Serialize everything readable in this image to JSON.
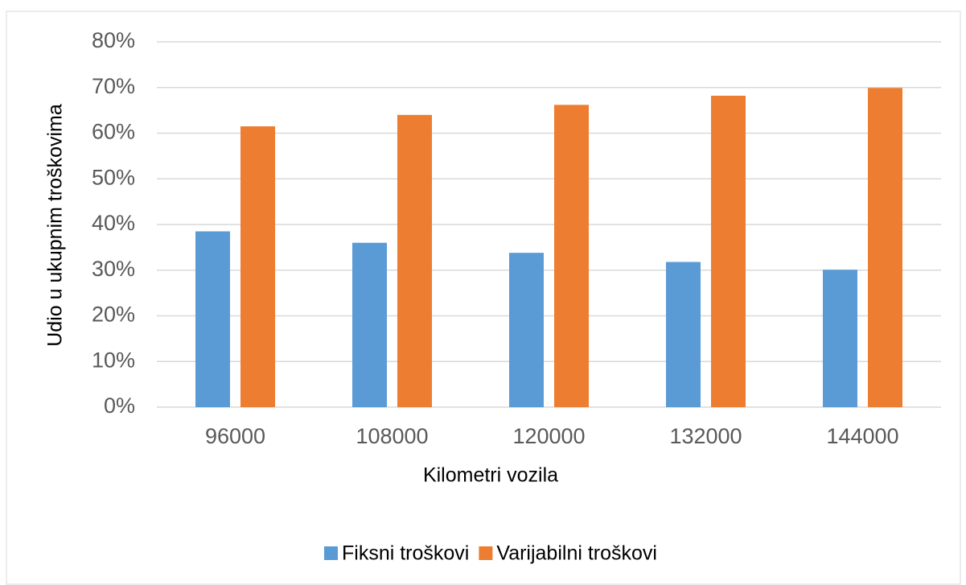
{
  "chart_data": {
    "type": "bar",
    "y_label": "Udio u ukupnim troškovima",
    "x_label": "Kilometri vozila",
    "categories": [
      "96000",
      "108000",
      "120000",
      "132000",
      "144000"
    ],
    "series": [
      {
        "name": "Fiksni troškovi",
        "color": "#5b9bd5",
        "values": [
          38.5,
          36,
          33.8,
          31.8,
          30.1
        ]
      },
      {
        "name": "Varijabilni troškovi",
        "color": "#ed7d31",
        "values": [
          61.5,
          64,
          66.2,
          68.2,
          69.9
        ]
      }
    ],
    "ylim": [
      0,
      80
    ],
    "yticks": [
      {
        "value": 0,
        "label": "0%"
      },
      {
        "value": 10,
        "label": "10%"
      },
      {
        "value": 20,
        "label": "20%"
      },
      {
        "value": 30,
        "label": "30%"
      },
      {
        "value": 40,
        "label": "40%"
      },
      {
        "value": 50,
        "label": "50%"
      },
      {
        "value": 60,
        "label": "60%"
      },
      {
        "value": 70,
        "label": "70%"
      },
      {
        "value": 80,
        "label": "80%"
      }
    ],
    "grid": true,
    "legend": "bottom"
  }
}
